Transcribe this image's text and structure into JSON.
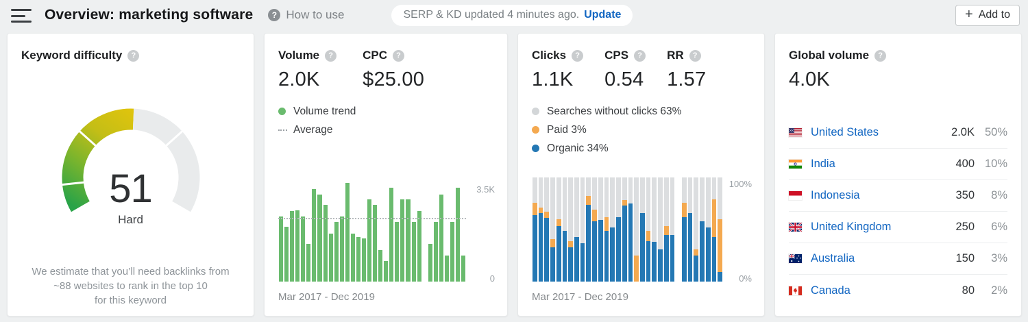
{
  "header": {
    "title": "Overview: marketing software",
    "help_label": "How to use",
    "update_status": "SERP & KD updated 4 minutes ago.",
    "update_action": "Update",
    "add_to_label": "Add to"
  },
  "kd_card": {
    "title": "Keyword difficulty",
    "score": "51",
    "difficulty_label": "Hard",
    "desc_lines": [
      "We estimate that you’ll need backlinks from",
      "~88 websites to rank in the top 10",
      "for this keyword"
    ]
  },
  "volume_card": {
    "metrics": [
      {
        "label": "Volume",
        "value": "2.0K"
      },
      {
        "label": "CPC",
        "value": "$25.00"
      }
    ],
    "legend": [
      {
        "label": "Volume trend"
      },
      {
        "label": "Average"
      }
    ],
    "y_top_label": "3.5K",
    "y_bottom_label": "0",
    "x_label": "Mar 2017 - Dec 2019"
  },
  "clicks_card": {
    "metrics": [
      {
        "label": "Clicks",
        "value": "1.1K"
      },
      {
        "label": "CPS",
        "value": "0.54"
      },
      {
        "label": "RR",
        "value": "1.57"
      }
    ],
    "legend": [
      {
        "label": "Searches without clicks 63%"
      },
      {
        "label": "Paid 3%"
      },
      {
        "label": "Organic 34%"
      }
    ],
    "y_top_label": "100%",
    "y_bottom_label": "0%",
    "x_label": "Mar 2017 - Dec 2019"
  },
  "global_card": {
    "title": "Global volume",
    "value": "4.0K",
    "countries": [
      {
        "name": "United States",
        "value": "2.0K",
        "share": "50%",
        "flag": "us"
      },
      {
        "name": "India",
        "value": "400",
        "share": "10%",
        "flag": "in"
      },
      {
        "name": "Indonesia",
        "value": "350",
        "share": "8%",
        "flag": "id"
      },
      {
        "name": "United Kingdom",
        "value": "250",
        "share": "6%",
        "flag": "gb"
      },
      {
        "name": "Australia",
        "value": "150",
        "share": "3%",
        "flag": "au"
      },
      {
        "name": "Canada",
        "value": "80",
        "share": "2%",
        "flag": "ca"
      }
    ]
  },
  "colors": {
    "accent_blue": "#1266c2",
    "volume_bar_green": "#6abb6e",
    "organic_blue": "#2478b4",
    "paid_orange": "#f4a950",
    "no_click_gray": "#dcdee0"
  },
  "chart_data": [
    {
      "type": "gauge",
      "metric": "Keyword difficulty",
      "value": 51,
      "max": 100,
      "label": "Hard",
      "segment_boundaries": [
        10,
        30,
        70
      ],
      "arc_degrees": 240,
      "fill_colors": [
        "#29a348",
        "#77b42e",
        "#c4be16",
        "#e0c40d"
      ],
      "track_color": "#e9ebec"
    },
    {
      "type": "bar",
      "series_name": "Volume trend",
      "x_range": "Mar 2017 - Dec 2019",
      "ylim": [
        0,
        4000
      ],
      "y_tick_labels": [
        "0",
        "3.5K"
      ],
      "average": 2400,
      "bar_color": "#6abb6e",
      "values": [
        2500,
        2100,
        2700,
        2750,
        2500,
        1450,
        3550,
        3350,
        2950,
        1850,
        2300,
        2500,
        3800,
        1850,
        1700,
        1650,
        3150,
        2950,
        1200,
        800,
        3600,
        2300,
        3150,
        3150,
        2300,
        2700,
        null,
        1450,
        2300,
        3350,
        1000,
        2300,
        3600,
        1000
      ]
    },
    {
      "type": "stacked-bar-percent",
      "x_range": "Mar 2017 - Dec 2019",
      "ylim": [
        0,
        100
      ],
      "y_tick_labels": [
        "0%",
        "100%"
      ],
      "values_format": "[organic_pct, paid_pct] — remainder is searches without clicks",
      "series": [
        {
          "name": "Organic",
          "color": "#2478b4"
        },
        {
          "name": "Paid",
          "color": "#f4a950"
        },
        {
          "name": "Searches without clicks",
          "color": "#dcdee0"
        }
      ],
      "values": [
        [
          64,
          12
        ],
        [
          66,
          5
        ],
        [
          61,
          6
        ],
        [
          33,
          8
        ],
        [
          53,
          7
        ],
        [
          49,
          0
        ],
        [
          33,
          6
        ],
        [
          43,
          0
        ],
        [
          37,
          0
        ],
        [
          74,
          8
        ],
        [
          58,
          11
        ],
        [
          59,
          0
        ],
        [
          49,
          13
        ],
        [
          52,
          0
        ],
        [
          62,
          0
        ],
        [
          73,
          5
        ],
        [
          75,
          0
        ],
        [
          0,
          25
        ],
        [
          66,
          0
        ],
        [
          39,
          10
        ],
        [
          38,
          0
        ],
        [
          31,
          0
        ],
        [
          45,
          8
        ],
        [
          45,
          0
        ],
        null,
        [
          62,
          14
        ],
        [
          66,
          0
        ],
        [
          25,
          6
        ],
        [
          58,
          0
        ],
        [
          52,
          0
        ],
        [
          43,
          36
        ],
        [
          9,
          51
        ]
      ]
    }
  ]
}
